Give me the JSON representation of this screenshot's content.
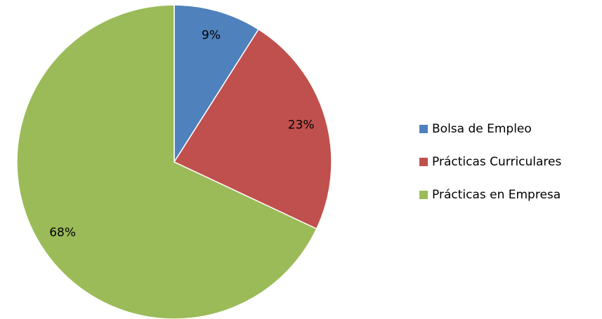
{
  "chart_data": {
    "type": "pie",
    "categories": [
      "Bolsa de Empleo",
      "Prácticas Curriculares",
      "Prácticas en Empresa"
    ],
    "values": [
      9,
      23,
      68
    ],
    "value_labels": [
      "9%",
      "23%",
      "68%"
    ],
    "colors": [
      "#4f81bd",
      "#c0504d",
      "#9bbb59"
    ],
    "legend": "right"
  }
}
